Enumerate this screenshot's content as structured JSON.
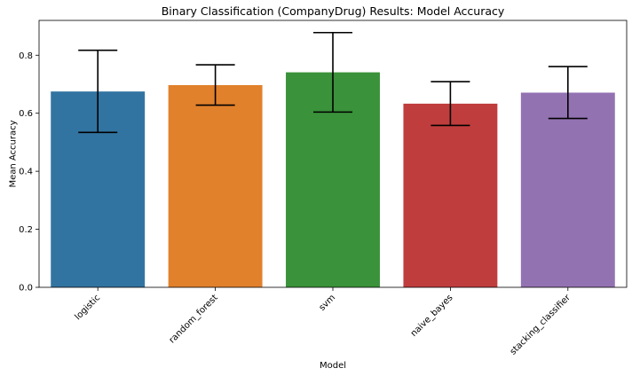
{
  "chart_data": {
    "type": "bar",
    "title": "Binary Classification (CompanyDrug) Results: Model Accuracy",
    "xlabel": "Model",
    "ylabel": "Mean Accuracy",
    "categories": [
      "logistic",
      "random_forest",
      "svm",
      "naive_bayes",
      "stacking_classifier"
    ],
    "values": [
      0.675,
      0.697,
      0.741,
      0.633,
      0.671
    ],
    "error_low": [
      0.534,
      0.628,
      0.604,
      0.558,
      0.582
    ],
    "error_high": [
      0.817,
      0.767,
      0.878,
      0.709,
      0.761
    ],
    "colors": [
      "#3274a1",
      "#e1812c",
      "#3a923a",
      "#c03d3e",
      "#9372b2"
    ],
    "ylim": [
      0,
      0.92
    ],
    "yticks": [
      0.0,
      0.2,
      0.4,
      0.6,
      0.8
    ],
    "ytick_labels": [
      "0.0",
      "0.2",
      "0.4",
      "0.6",
      "0.8"
    ],
    "grid": false,
    "legend": "none"
  }
}
